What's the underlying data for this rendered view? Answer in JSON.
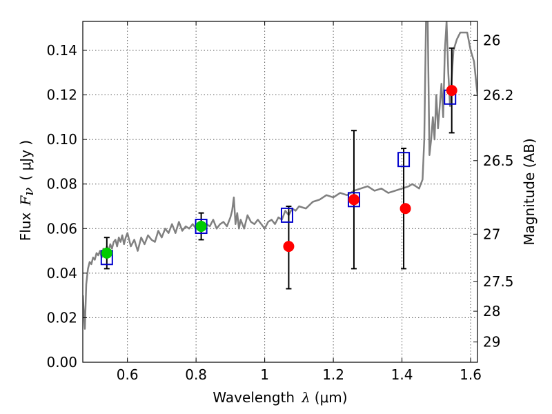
{
  "chart_data": {
    "type": "scatter",
    "xlabel_prefix": "Wavelength",
    "xlabel_symbol": "λ",
    "xlabel_unit": "(μm)",
    "ylabel_prefix": "Flux",
    "ylabel_symbol": "F",
    "ylabel_subscript": "ν",
    "ylabel_unit": "( μJy )",
    "y2label": "Magnitude (AB)",
    "xlim": [
      0.47,
      1.62
    ],
    "ylim": [
      0.0,
      0.153
    ],
    "x_ticks": [
      {
        "value": 0.6,
        "label": "0.6"
      },
      {
        "value": 0.8,
        "label": "0.8"
      },
      {
        "value": 1.0,
        "label": "1"
      },
      {
        "value": 1.2,
        "label": "1.2"
      },
      {
        "value": 1.4,
        "label": "1.4"
      },
      {
        "value": 1.6,
        "label": "1.6"
      }
    ],
    "y_ticks": [
      {
        "value": 0.0,
        "label": "0.00"
      },
      {
        "value": 0.02,
        "label": "0.02"
      },
      {
        "value": 0.04,
        "label": "0.04"
      },
      {
        "value": 0.06,
        "label": "0.06"
      },
      {
        "value": 0.08,
        "label": "0.08"
      },
      {
        "value": 0.1,
        "label": "0.10"
      },
      {
        "value": 0.12,
        "label": "0.12"
      },
      {
        "value": 0.14,
        "label": "0.14"
      }
    ],
    "y2_ticks": [
      {
        "flux": 0.1445,
        "label": "26"
      },
      {
        "flux": 0.1198,
        "label": "26.2"
      },
      {
        "flux": 0.0905,
        "label": "26.5"
      },
      {
        "flux": 0.0575,
        "label": "27"
      },
      {
        "flux": 0.0363,
        "label": "27.5"
      },
      {
        "flux": 0.0229,
        "label": "28"
      },
      {
        "flux": 0.0091,
        "label": "29"
      }
    ],
    "grid": true,
    "colors": {
      "spectrum": "#808080",
      "green": "#00cc00",
      "red": "#ff0000",
      "model_box": "#0000cc",
      "errorbar": "#000000"
    },
    "series": [
      {
        "name": "template spectrum",
        "kind": "line",
        "x": [
          0.47,
          0.473,
          0.476,
          0.48,
          0.485,
          0.49,
          0.495,
          0.5,
          0.505,
          0.51,
          0.515,
          0.52,
          0.525,
          0.53,
          0.535,
          0.54,
          0.545,
          0.55,
          0.555,
          0.56,
          0.565,
          0.57,
          0.575,
          0.58,
          0.585,
          0.59,
          0.595,
          0.6,
          0.61,
          0.62,
          0.63,
          0.64,
          0.65,
          0.66,
          0.67,
          0.68,
          0.69,
          0.7,
          0.71,
          0.72,
          0.73,
          0.74,
          0.75,
          0.76,
          0.77,
          0.78,
          0.79,
          0.8,
          0.81,
          0.82,
          0.83,
          0.84,
          0.85,
          0.86,
          0.87,
          0.88,
          0.89,
          0.9,
          0.905,
          0.91,
          0.915,
          0.92,
          0.925,
          0.93,
          0.94,
          0.95,
          0.96,
          0.97,
          0.98,
          0.99,
          1.0,
          1.01,
          1.02,
          1.03,
          1.04,
          1.05,
          1.06,
          1.07,
          1.08,
          1.09,
          1.1,
          1.12,
          1.14,
          1.16,
          1.18,
          1.2,
          1.22,
          1.24,
          1.26,
          1.28,
          1.3,
          1.32,
          1.34,
          1.36,
          1.38,
          1.4,
          1.42,
          1.43,
          1.44,
          1.45,
          1.46,
          1.465,
          1.47,
          1.475,
          1.48,
          1.485,
          1.49,
          1.495,
          1.5,
          1.505,
          1.51,
          1.515,
          1.52,
          1.525,
          1.53,
          1.535,
          1.54,
          1.545,
          1.55,
          1.56,
          1.57,
          1.58,
          1.59,
          1.6,
          1.61,
          1.62
        ],
        "y": [
          0.03,
          0.022,
          0.015,
          0.035,
          0.042,
          0.045,
          0.044,
          0.047,
          0.046,
          0.049,
          0.048,
          0.05,
          0.047,
          0.051,
          0.049,
          0.052,
          0.05,
          0.053,
          0.051,
          0.054,
          0.055,
          0.052,
          0.056,
          0.054,
          0.057,
          0.053,
          0.056,
          0.058,
          0.052,
          0.055,
          0.05,
          0.056,
          0.053,
          0.057,
          0.055,
          0.054,
          0.059,
          0.056,
          0.06,
          0.058,
          0.062,
          0.058,
          0.063,
          0.059,
          0.061,
          0.06,
          0.062,
          0.06,
          0.063,
          0.06,
          0.062,
          0.061,
          0.064,
          0.06,
          0.062,
          0.063,
          0.061,
          0.065,
          0.068,
          0.074,
          0.062,
          0.067,
          0.06,
          0.064,
          0.06,
          0.066,
          0.063,
          0.062,
          0.064,
          0.062,
          0.06,
          0.063,
          0.064,
          0.062,
          0.065,
          0.064,
          0.068,
          0.066,
          0.069,
          0.068,
          0.07,
          0.069,
          0.072,
          0.073,
          0.075,
          0.074,
          0.076,
          0.075,
          0.077,
          0.078,
          0.079,
          0.077,
          0.078,
          0.076,
          0.077,
          0.078,
          0.079,
          0.08,
          0.079,
          0.078,
          0.082,
          0.1,
          0.153,
          0.153,
          0.093,
          0.1,
          0.11,
          0.1,
          0.12,
          0.105,
          0.115,
          0.125,
          0.11,
          0.14,
          0.153,
          0.13,
          0.115,
          0.128,
          0.14,
          0.145,
          0.148,
          0.148,
          0.148,
          0.14,
          0.135,
          0.12
        ],
        "color": "#808080"
      },
      {
        "name": "green measurements",
        "kind": "points",
        "x": [
          0.54,
          0.815
        ],
        "y": [
          0.049,
          0.061
        ],
        "color": "#00cc00"
      },
      {
        "name": "red measurements",
        "kind": "points",
        "x": [
          1.07,
          1.26,
          1.41,
          1.545
        ],
        "y": [
          0.052,
          0.073,
          0.069,
          0.122
        ],
        "color": "#ff0000"
      },
      {
        "name": "model boxes",
        "kind": "squares",
        "x": [
          0.54,
          0.815,
          1.065,
          1.26,
          1.405,
          1.54
        ],
        "y": [
          0.047,
          0.061,
          0.066,
          0.073,
          0.091,
          0.119
        ],
        "color": "#0000cc"
      },
      {
        "name": "error bars",
        "kind": "errorbars",
        "x": [
          0.54,
          0.815,
          1.07,
          1.26,
          1.405,
          1.545
        ],
        "lower": [
          0.042,
          0.055,
          0.033,
          0.042,
          0.042,
          0.103
        ],
        "upper": [
          0.056,
          0.067,
          0.07,
          0.104,
          0.096,
          0.141
        ],
        "color": "#000000"
      }
    ]
  }
}
